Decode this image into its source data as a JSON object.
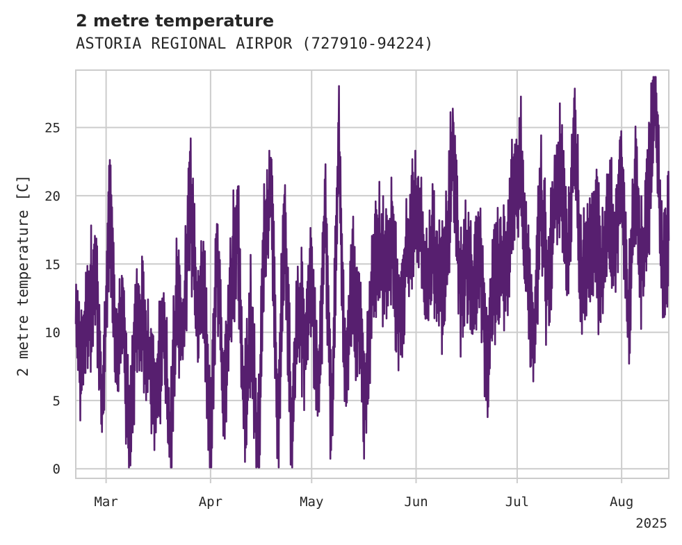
{
  "chart_data": {
    "type": "line",
    "title": "2 metre temperature",
    "subtitle": "ASTORIA REGIONAL AIRPOR (727910-94224)",
    "ylabel": "2 metre temperature [C]",
    "xlabel": "",
    "year_label": "2025",
    "x_start": "2025-02-20",
    "x_end": "2025-08-15",
    "ylim": [
      -0.7,
      29.2
    ],
    "y_ticks": [
      0,
      5,
      10,
      15,
      20,
      25
    ],
    "x_ticks": [
      {
        "date": "2025-03-01",
        "label": "Mar"
      },
      {
        "date": "2025-04-01",
        "label": "Apr"
      },
      {
        "date": "2025-05-01",
        "label": "May"
      },
      {
        "date": "2025-06-01",
        "label": "Jun"
      },
      {
        "date": "2025-07-01",
        "label": "Jul"
      },
      {
        "date": "2025-08-01",
        "label": "Aug"
      }
    ],
    "grid": true,
    "line_color": "#571f6f",
    "series": [
      {
        "x": [
          "2025-02-20",
          "2025-02-22",
          "2025-02-24",
          "2025-02-26",
          "2025-02-28",
          "2025-03-02",
          "2025-03-04",
          "2025-03-06",
          "2025-03-08",
          "2025-03-10",
          "2025-03-12",
          "2025-03-14",
          "2025-03-16",
          "2025-03-18",
          "2025-03-20",
          "2025-03-22",
          "2025-03-24",
          "2025-03-26",
          "2025-03-28",
          "2025-03-30",
          "2025-04-01",
          "2025-04-03",
          "2025-04-05",
          "2025-04-07",
          "2025-04-09",
          "2025-04-11",
          "2025-04-13",
          "2025-04-15",
          "2025-04-17",
          "2025-04-19",
          "2025-04-21",
          "2025-04-23",
          "2025-04-25",
          "2025-04-27",
          "2025-04-29",
          "2025-05-01",
          "2025-05-03",
          "2025-05-05",
          "2025-05-07",
          "2025-05-09",
          "2025-05-11",
          "2025-05-13",
          "2025-05-15",
          "2025-05-17",
          "2025-05-19",
          "2025-05-21",
          "2025-05-23",
          "2025-05-25",
          "2025-05-27",
          "2025-05-29",
          "2025-05-31",
          "2025-06-02",
          "2025-06-04",
          "2025-06-06",
          "2025-06-08",
          "2025-06-10",
          "2025-06-12",
          "2025-06-14",
          "2025-06-16",
          "2025-06-18",
          "2025-06-20",
          "2025-06-22",
          "2025-06-24",
          "2025-06-26",
          "2025-06-28",
          "2025-06-30",
          "2025-07-02",
          "2025-07-04",
          "2025-07-06",
          "2025-07-08",
          "2025-07-10",
          "2025-07-12",
          "2025-07-14",
          "2025-07-16",
          "2025-07-18",
          "2025-07-20",
          "2025-07-22",
          "2025-07-24",
          "2025-07-26",
          "2025-07-28",
          "2025-07-30",
          "2025-08-01",
          "2025-08-03",
          "2025-08-05",
          "2025-08-07",
          "2025-08-09",
          "2025-08-11",
          "2025-08-13",
          "2025-08-15"
        ],
        "y": [
          10.6,
          8.5,
          12.0,
          13.9,
          4.0,
          19.4,
          7.0,
          12.1,
          1.1,
          11.5,
          9.8,
          8.0,
          4.5,
          10.9,
          2.0,
          12.2,
          9.5,
          20.6,
          11.0,
          13.3,
          1.8,
          16.1,
          4.4,
          13.0,
          18.0,
          3.8,
          10.5,
          0.6,
          16.7,
          20.6,
          3.0,
          19.0,
          2.8,
          11.7,
          9.5,
          13.9,
          4.7,
          19.5,
          2.8,
          24.3,
          6.0,
          13.3,
          10.5,
          5.0,
          13.0,
          15.9,
          14.5,
          16.7,
          11.0,
          15.0,
          18.3,
          19.6,
          12.0,
          16.0,
          12.5,
          15.3,
          25.0,
          13.0,
          15.5,
          12.5,
          16.8,
          6.7,
          15.0,
          14.1,
          15.6,
          20.0,
          22.2,
          14.4,
          9.0,
          20.6,
          13.0,
          18.9,
          22.2,
          14.5,
          25.6,
          13.5,
          15.0,
          17.5,
          14.2,
          18.3,
          16.0,
          21.7,
          10.5,
          20.7,
          14.5,
          20.0,
          27.8,
          14.0,
          16.7
        ]
      }
    ]
  }
}
